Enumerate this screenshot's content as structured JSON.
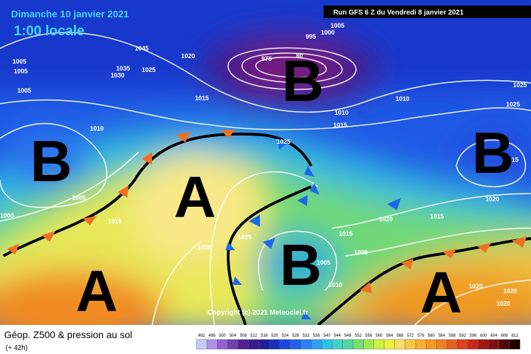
{
  "header": {
    "date": "Dimanche 10 janvier 2021",
    "time": "1:00 locale",
    "run": "Run GFS 6 Z du Vendredi 8 janvier 2021"
  },
  "centers": [
    "B",
    "B",
    "A",
    "B",
    "B",
    "A",
    "A"
  ],
  "isobar_labels": [
    "1005",
    "1005",
    "1005",
    "1045",
    "1035",
    "1030",
    "1025",
    "1020",
    "1015",
    "1010",
    "1005",
    "1000",
    "995",
    "975",
    "80",
    "1010",
    "1015",
    "1010",
    "1025",
    "1025",
    "1015",
    "1005",
    "1015",
    "1000",
    "1030",
    "1025",
    "1020",
    "1020",
    "1015",
    "1005",
    "1005",
    "1010",
    "1020",
    "1020",
    "1020",
    "1025",
    "15"
  ],
  "footer": {
    "copyright": "Copyright (c) 2021 Meteociel.fr",
    "title": "Géop. Z500 & pression au sol",
    "lead": "(+ 42h)"
  },
  "legend": {
    "ticks": [
      492,
      496,
      500,
      504,
      508,
      512,
      516,
      520,
      524,
      528,
      532,
      536,
      540,
      544,
      548,
      552,
      556,
      560,
      564,
      568,
      572,
      576,
      580,
      584,
      588,
      592,
      596,
      600,
      604,
      608,
      612
    ],
    "colors": [
      "#c8c8ff",
      "#b090e8",
      "#9060d0",
      "#7040b0",
      "#502090",
      "#3a1a8a",
      "#2020a0",
      "#1830c0",
      "#1a48dc",
      "#2060ec",
      "#2a80f4",
      "#30a0f4",
      "#30c0e8",
      "#40d0c8",
      "#50d8a0",
      "#70e070",
      "#a0e850",
      "#d0f040",
      "#f0f040",
      "#f8e060",
      "#f8c840",
      "#f8b030",
      "#f89820",
      "#f08020",
      "#e86020",
      "#e04020",
      "#c82818",
      "#a01810",
      "#801010",
      "#500808",
      "#200000"
    ]
  }
}
